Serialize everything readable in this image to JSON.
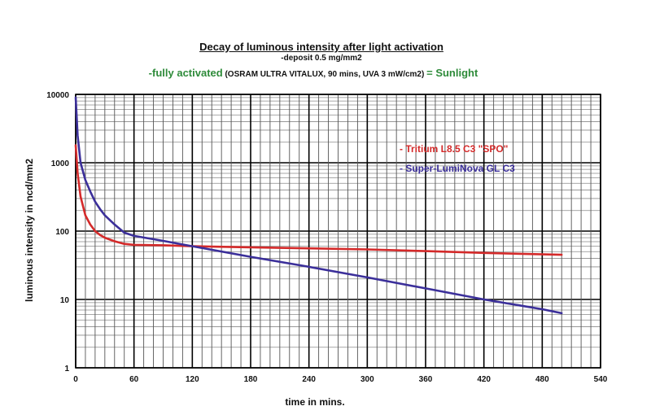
{
  "header": {
    "title": "Decay of luminous intensity after light activation",
    "subtitle": "-deposit 0.5 mg/mm2",
    "condition_prefix": "-fully activated",
    "condition_detail": " (OSRAM ULTRA VITALUX, 90 mins, UVA 3 mW/cm2) ",
    "condition_suffix": "= Sunlight"
  },
  "colors": {
    "tritium": "#d42a2a",
    "superluminova": "#3b2f9a",
    "grid_major": "#000000",
    "grid_minor": "#8a8a8a",
    "condition_green": "#2e8b3a"
  },
  "chart_data": {
    "type": "line",
    "xlabel": "time in mins.",
    "ylabel": "luminous intensity in ncd/mm2",
    "xlim": [
      0,
      540
    ],
    "ylim": [
      1,
      10000
    ],
    "yscale": "log",
    "grid": true,
    "legend_position": "right",
    "x_ticks": [
      "0",
      "60",
      "120",
      "180",
      "240",
      "300",
      "360",
      "420",
      "480",
      "540"
    ],
    "y_ticks": [
      "1",
      "10",
      "100",
      "1000",
      "10000"
    ],
    "series": [
      {
        "name": "- Tritium L8.5 C3 \"SPO\"",
        "color": "#d42a2a",
        "x": [
          0,
          2,
          5,
          10,
          15,
          20,
          25,
          30,
          40,
          50,
          60,
          90,
          120,
          180,
          240,
          300,
          360,
          420,
          500
        ],
        "y": [
          1800,
          700,
          320,
          170,
          125,
          100,
          88,
          80,
          71,
          65,
          63,
          62,
          60,
          58,
          56,
          54,
          51,
          48,
          45
        ]
      },
      {
        "name": "- Super-LumiNova GL C3",
        "color": "#3b2f9a",
        "x": [
          0,
          2,
          5,
          10,
          15,
          20,
          25,
          30,
          40,
          50,
          60,
          90,
          120,
          180,
          240,
          300,
          360,
          420,
          480,
          500
        ],
        "y": [
          9000,
          2500,
          1000,
          560,
          380,
          270,
          210,
          170,
          125,
          95,
          85,
          72,
          60,
          42,
          30,
          21,
          14.5,
          10,
          7.2,
          6.3
        ]
      }
    ]
  }
}
